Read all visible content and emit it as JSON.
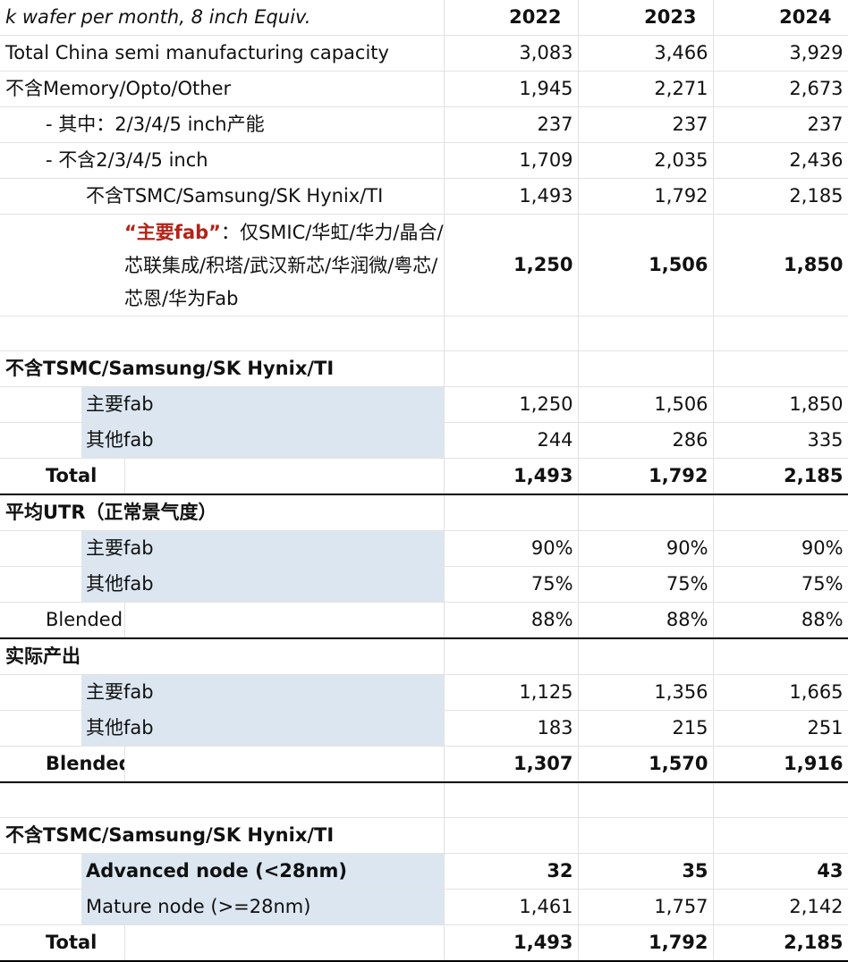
{
  "header": {
    "unit": "k wafer per month, 8 inch Equiv.",
    "years": [
      "2022",
      "2023",
      "2024"
    ]
  },
  "capacity": [
    {
      "label": "Total China semi manufacturing capacity",
      "values": [
        "3,083",
        "3,466",
        "3,929"
      ]
    },
    {
      "label": "不含Memory/Opto/Other",
      "values": [
        "1,945",
        "2,271",
        "2,673"
      ]
    },
    {
      "label": "- 其中：2/3/4/5 inch产能",
      "values": [
        "237",
        "237",
        "237"
      ]
    },
    {
      "label": "- 不含2/3/4/5 inch",
      "values": [
        "1,709",
        "2,035",
        "2,436"
      ]
    },
    {
      "label": "不含TSMC/Samsung/SK Hynix/TI",
      "values": [
        "1,493",
        "1,792",
        "2,185"
      ]
    }
  ],
  "major_fab_def": {
    "red_label": "“主要fab”",
    "text": "：仅SMIC/华虹/华力/晶合/芯联集成/积塔/武汉新芯/华润微/粤芯/芯恩/华为Fab",
    "values": [
      "1,250",
      "1,506",
      "1,850"
    ]
  },
  "section_fab": {
    "title": "不含TSMC/Samsung/SK Hynix/TI",
    "rows": [
      {
        "label": "主要fab",
        "values": [
          "1,250",
          "1,506",
          "1,850"
        ]
      },
      {
        "label": "其他fab",
        "values": [
          "244",
          "286",
          "335"
        ]
      }
    ],
    "total": {
      "label": "Total",
      "values": [
        "1,493",
        "1,792",
        "2,185"
      ]
    }
  },
  "section_utr": {
    "title": "平均UTR（正常景气度）",
    "rows": [
      {
        "label": "主要fab",
        "values": [
          "90%",
          "90%",
          "90%"
        ]
      },
      {
        "label": "其他fab",
        "values": [
          "75%",
          "75%",
          "75%"
        ]
      }
    ],
    "blended": {
      "label": "Blended",
      "values": [
        "88%",
        "88%",
        "88%"
      ]
    }
  },
  "section_output": {
    "title": "实际产出",
    "rows": [
      {
        "label": "主要fab",
        "values": [
          "1,125",
          "1,356",
          "1,665"
        ]
      },
      {
        "label": "其他fab",
        "values": [
          "183",
          "215",
          "251"
        ]
      }
    ],
    "blended": {
      "label": "Blended",
      "values": [
        "1,307",
        "1,570",
        "1,916"
      ]
    }
  },
  "section_node": {
    "title": "不含TSMC/Samsung/SK Hynix/TI",
    "rows": [
      {
        "label": "Advanced node (<28nm)",
        "values": [
          "32",
          "35",
          "43"
        ]
      },
      {
        "label": "Mature node (>=28nm)",
        "values": [
          "1,461",
          "1,757",
          "2,142"
        ]
      }
    ],
    "total": {
      "label": "Total",
      "values": [
        "1,493",
        "1,792",
        "2,185"
      ]
    }
  },
  "colors": {
    "shade": "#dce6f1",
    "highlight": "#b42318"
  }
}
